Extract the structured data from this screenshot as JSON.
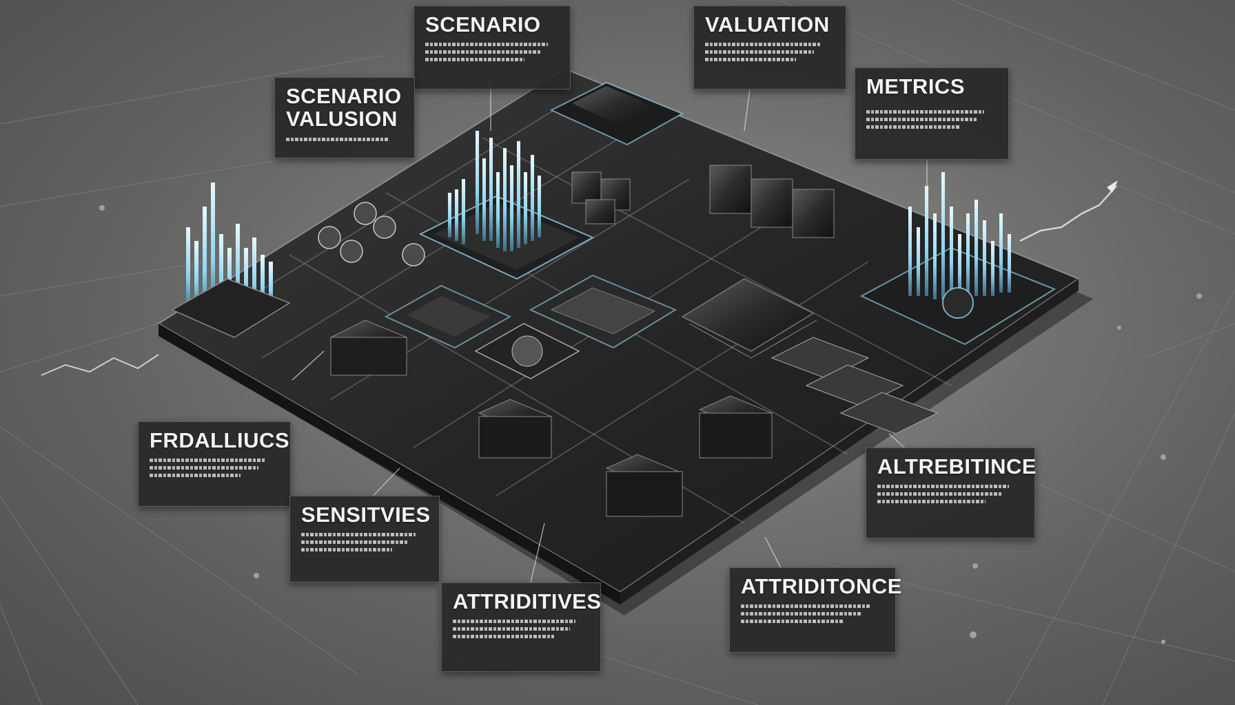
{
  "labels": {
    "scenario_top": {
      "title": "SCENARIO"
    },
    "valuation_top": {
      "title": "VALUATION"
    },
    "scenario_valuation": {
      "title": "SCENARIO",
      "subtitle": "VALUSION"
    },
    "metrics": {
      "title": "METRICS"
    },
    "frdalliucs": {
      "title": "FRDALLIUCS"
    },
    "sensitivies": {
      "title": "SENSITVIES"
    },
    "attributivies": {
      "title": "ATTRIDITIVES"
    },
    "attributince_right": {
      "title": "ALTREBITINCE"
    },
    "attribitonce_bottom": {
      "title": "ATTRIDITONCE"
    }
  },
  "colors": {
    "background": "#6e6e6c",
    "board": "#262626",
    "chip": "#1c1c1c",
    "accent_cyan": "#9fe4ff",
    "label_bg": "#282828",
    "label_text": "#f4f4f4"
  }
}
